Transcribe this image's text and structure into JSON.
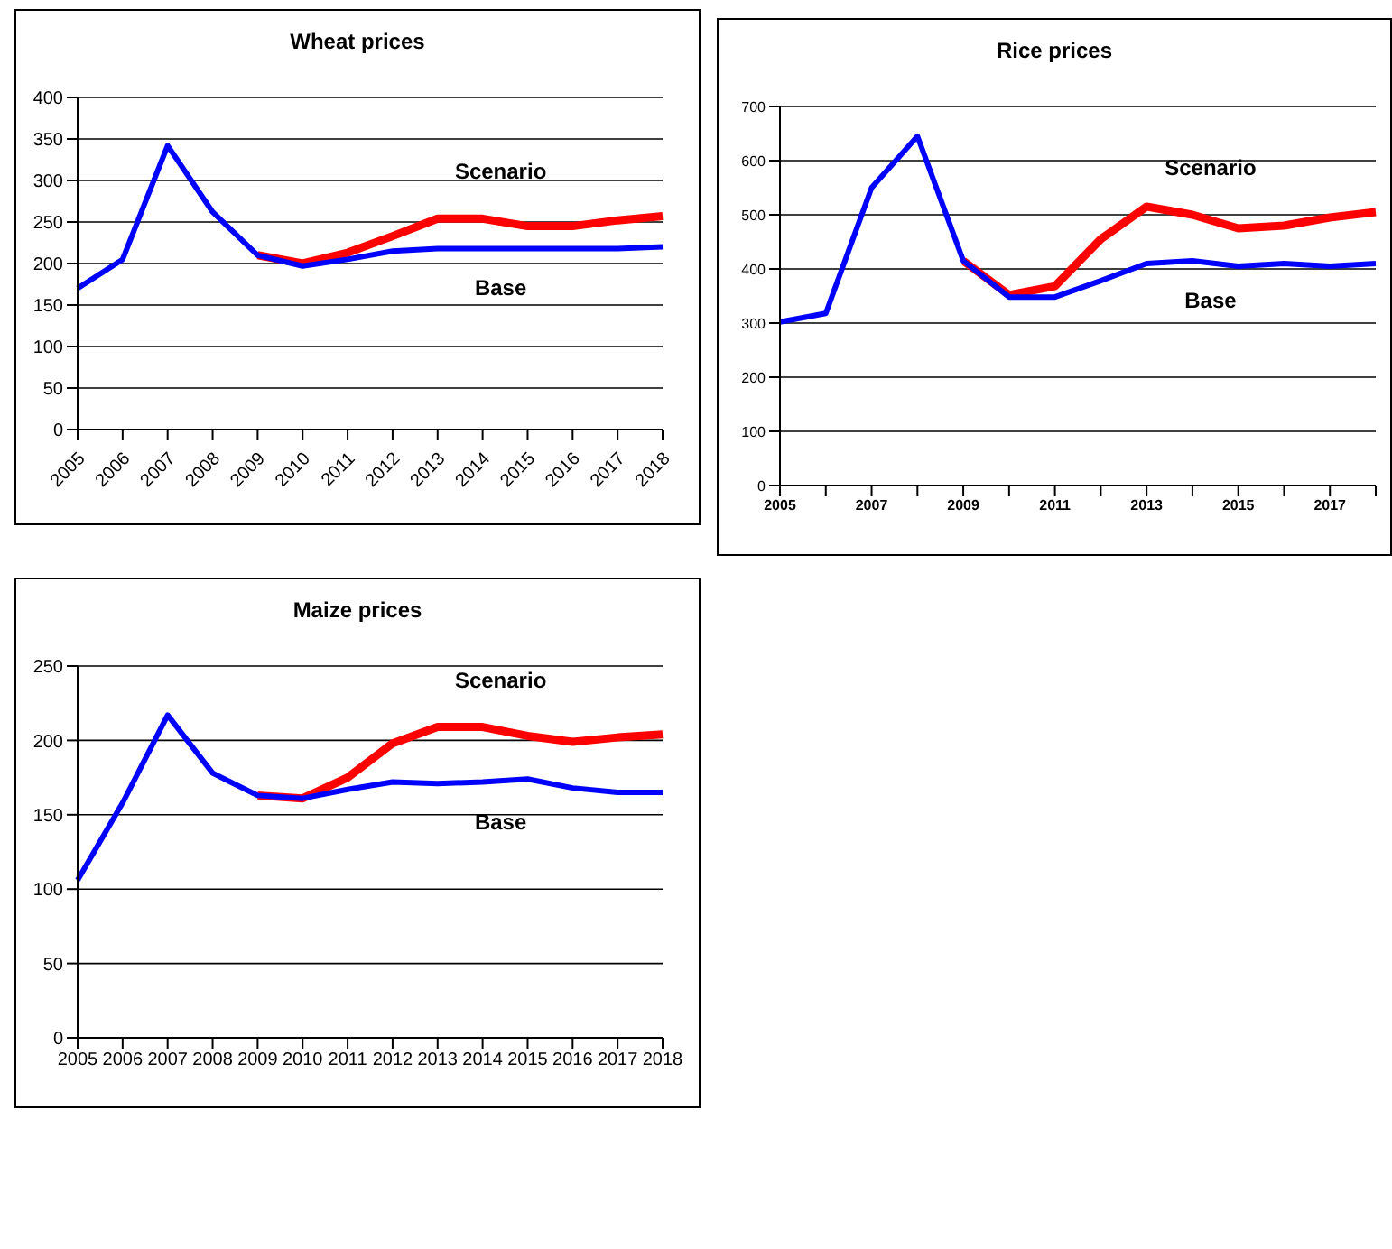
{
  "chart_data": [
    {
      "type": "line",
      "title": "Wheat prices",
      "categories": [
        "2005",
        "2006",
        "2007",
        "2008",
        "2009",
        "2010",
        "2011",
        "2012",
        "2013",
        "2014",
        "2015",
        "2016",
        "2017",
        "2018"
      ],
      "ylim": [
        0,
        400
      ],
      "yticks": [
        0,
        50,
        100,
        150,
        200,
        250,
        300,
        350,
        400
      ],
      "grid": "y",
      "marker": "none",
      "series": [
        {
          "name": "Scenario",
          "color": "#ff0000",
          "values": [
            null,
            null,
            null,
            null,
            210,
            200,
            213,
            233,
            254,
            254,
            245,
            245,
            252,
            257
          ]
        },
        {
          "name": "Base",
          "color": "#0000ff",
          "values": [
            170,
            205,
            342,
            262,
            210,
            197,
            205,
            215,
            218,
            218,
            218,
            218,
            218,
            220
          ]
        }
      ]
    },
    {
      "type": "line",
      "title": "Rice prices",
      "categories": [
        "2005",
        null,
        "2007",
        null,
        "2009",
        null,
        "2011",
        null,
        "2013",
        null,
        "2015",
        null,
        "2017",
        null
      ],
      "ylim": [
        0,
        700
      ],
      "yticks": [
        0,
        100,
        200,
        300,
        400,
        500,
        600,
        700
      ],
      "grid": "y",
      "marker": "none",
      "series": [
        {
          "name": "Scenario",
          "color": "#ff0000",
          "values": [
            null,
            null,
            null,
            null,
            415,
            352,
            368,
            455,
            515,
            500,
            475,
            480,
            495,
            505
          ]
        },
        {
          "name": "Base",
          "color": "#0000ff",
          "values": [
            302,
            318,
            550,
            645,
            415,
            348,
            348,
            378,
            410,
            415,
            405,
            410,
            405,
            410
          ]
        }
      ]
    },
    {
      "type": "line",
      "title": "Maize prices",
      "categories": [
        "2005",
        "2006",
        "2007",
        "2008",
        "2009",
        "2010",
        "2011",
        "2012",
        "2013",
        "2014",
        "2015",
        "2016",
        "2017",
        "2018"
      ],
      "ylim": [
        0,
        250
      ],
      "yticks": [
        0,
        50,
        100,
        150,
        200,
        250
      ],
      "grid": "y",
      "marker": "none",
      "series": [
        {
          "name": "Scenario",
          "color": "#ff0000",
          "values": [
            null,
            null,
            null,
            null,
            163,
            161,
            175,
            198,
            209,
            209,
            203,
            199,
            202,
            204
          ]
        },
        {
          "name": "Base",
          "color": "#0000ff",
          "values": [
            106,
            158,
            217,
            178,
            163,
            161,
            167,
            172,
            171,
            172,
            174,
            168,
            165,
            165
          ]
        }
      ]
    }
  ]
}
